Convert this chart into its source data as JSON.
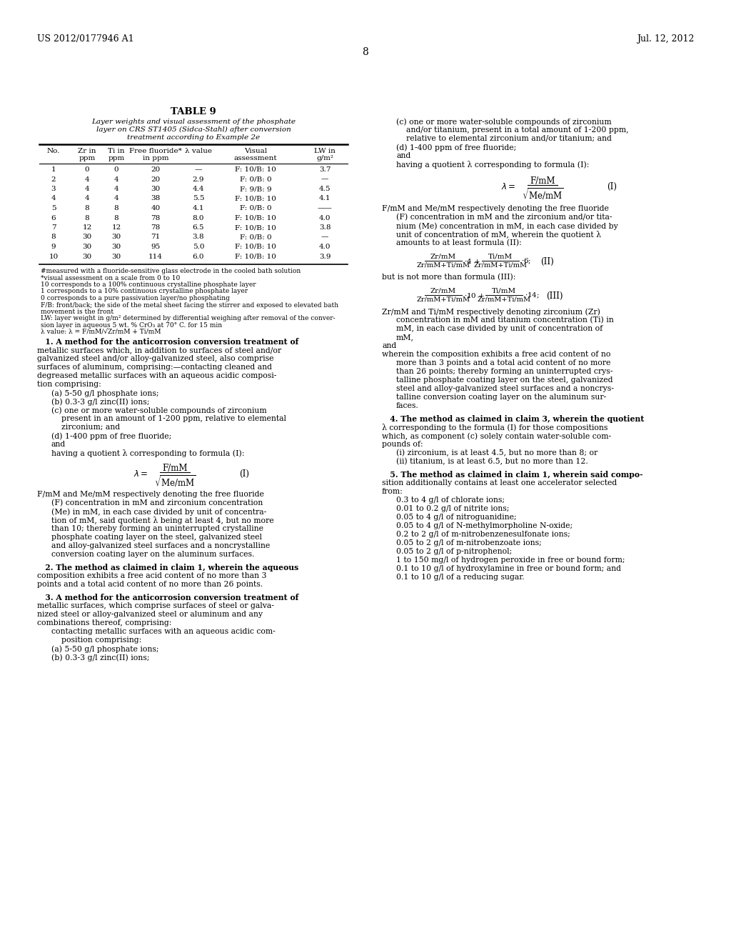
{
  "background_color": "#ffffff",
  "page_header_left": "US 2012/0177946 A1",
  "page_header_right": "Jul. 12, 2012",
  "page_number": "8",
  "table_title": "TABLE 9",
  "table_subtitle_lines": [
    "Layer weights and visual assessment of the phosphate",
    "layer on CRS ST1405 (Sidca-Stahl) after conversion",
    "treatment according to Example 2e"
  ],
  "col_headers": [
    [
      "No.",
      ""
    ],
    [
      "Zr in",
      "ppm"
    ],
    [
      "Ti in",
      "ppm"
    ],
    [
      "Free fluoride*",
      "in ppm"
    ],
    [
      "λ value",
      ""
    ],
    [
      "Visual",
      "assessment"
    ],
    [
      "LW in",
      "g/m²"
    ]
  ],
  "table_rows": [
    [
      "1",
      "0",
      "0",
      "20",
      "—",
      "F: 10/B: 10",
      "3.7"
    ],
    [
      "2",
      "4",
      "4",
      "20",
      "2.9",
      "F: 0/B: 0",
      "—"
    ],
    [
      "3",
      "4",
      "4",
      "30",
      "4.4",
      "F: 9/B: 9",
      "4.5"
    ],
    [
      "4",
      "4",
      "4",
      "38",
      "5.5",
      "F: 10/B: 10",
      "4.1"
    ],
    [
      "5",
      "8",
      "8",
      "40",
      "4.1",
      "F: 0/B: 0",
      "——"
    ],
    [
      "6",
      "8",
      "8",
      "78",
      "8.0",
      "F: 10/B: 10",
      "4.0"
    ],
    [
      "7",
      "12",
      "12",
      "78",
      "6.5",
      "F: 10/B: 10",
      "3.8"
    ],
    [
      "8",
      "30",
      "30",
      "71",
      "3.8",
      "F: 0/B: 0",
      "—"
    ],
    [
      "9",
      "30",
      "30",
      "95",
      "5.0",
      "F: 10/B: 10",
      "4.0"
    ],
    [
      "10",
      "30",
      "30",
      "114",
      "6.0",
      "F: 10/B: 10",
      "3.9"
    ]
  ],
  "footnotes": [
    "#measured with a fluoride-sensitive glass electrode in the cooled bath solution",
    "*visual assessment on a scale from 0 to 10",
    "10 corresponds to a 100% continuous crystalline phosphate layer",
    "1 corresponds to a 10% continuous crystalline phosphate layer",
    "0 corresponds to a pure passivation layer/no phosphating",
    "F/B: front/back; the side of the metal sheet facing the stirrer and exposed to elevated bath",
    "movement is the front",
    "LW: layer weight in g/m² determined by differential weighing after removal of the conver-",
    "sion layer in aqueous 5 wt. % CrO₃ at 70° C. for 15 min",
    "λ value: λ = F/mM/√Zr/mM + Ti/mM"
  ],
  "left_claims": [
    [
      true,
      0,
      "   1. A method for the anticorrosion conversion treatment of"
    ],
    [
      false,
      0,
      "metallic surfaces which, in addition to surfaces of steel and/or"
    ],
    [
      false,
      0,
      "galvanized steel and/or alloy-galvanized steel, also comprise"
    ],
    [
      false,
      0,
      "surfaces of aluminum, comprising:—contacting cleaned and"
    ],
    [
      false,
      0,
      "degreased metallic surfaces with an aqueous acidic composi-"
    ],
    [
      false,
      0,
      "tion comprising:"
    ],
    [
      false,
      1,
      "(a) 5-50 g/l phosphate ions;"
    ],
    [
      false,
      1,
      "(b) 0.3-3 g/l zinc(II) ions;"
    ],
    [
      false,
      1,
      "(c) one or more water-soluble compounds of zirconium"
    ],
    [
      false,
      2,
      "present in an amount of 1-200 ppm, relative to elemental"
    ],
    [
      false,
      2,
      "zirconium; and"
    ],
    [
      false,
      1,
      "(d) 1-400 ppm of free fluoride;"
    ],
    [
      false,
      1,
      "and"
    ],
    [
      false,
      1,
      "having a quotient λ corresponding to formula (I):"
    ],
    [
      false,
      -1,
      "FORMULA_I_LEFT"
    ],
    [
      false,
      0,
      "F/mM and Me/mM respectively denoting the free fluoride"
    ],
    [
      false,
      1,
      "(F) concentration in mM and zirconium concentration"
    ],
    [
      false,
      1,
      "(Me) in mM, in each case divided by unit of concentra-"
    ],
    [
      false,
      1,
      "tion of mM, said quotient λ being at least 4, but no more"
    ],
    [
      false,
      1,
      "than 10; thereby forming an uninterrupted crystalline"
    ],
    [
      false,
      1,
      "phosphate coating layer on the steel, galvanized steel"
    ],
    [
      false,
      1,
      "and alloy-galvanized steel surfaces and a noncrystalline"
    ],
    [
      false,
      1,
      "conversion coating layer on the aluminum surfaces."
    ],
    [
      false,
      -1,
      "BLANK"
    ],
    [
      true,
      0,
      "   2. The method as claimed in claim 1, wherein the aqueous"
    ],
    [
      false,
      0,
      "composition exhibits a free acid content of no more than 3"
    ],
    [
      false,
      0,
      "points and a total acid content of no more than 26 points."
    ],
    [
      false,
      -1,
      "BLANK"
    ],
    [
      true,
      0,
      "   3. A method for the anticorrosion conversion treatment of"
    ],
    [
      false,
      0,
      "metallic surfaces, which comprise surfaces of steel or galva-"
    ],
    [
      false,
      0,
      "nized steel or alloy-galvanized steel or aluminum and any"
    ],
    [
      false,
      0,
      "combinations thereof, comprising:"
    ],
    [
      false,
      1,
      "contacting metallic surfaces with an aqueous acidic com-"
    ],
    [
      false,
      2,
      "position comprising:"
    ],
    [
      false,
      1,
      "(a) 5-50 g/l phosphate ions;"
    ],
    [
      false,
      1,
      "(b) 0.3-3 g/l zinc(II) ions;"
    ]
  ],
  "right_claims": [
    [
      false,
      1,
      "(c) one or more water-soluble compounds of zirconium"
    ],
    [
      false,
      2,
      "and/or titanium, present in a total amount of 1-200 ppm,"
    ],
    [
      false,
      2,
      "relative to elemental zirconium and/or titanium; and"
    ],
    [
      false,
      1,
      "(d) 1-400 ppm of free fluoride;"
    ],
    [
      false,
      1,
      "and"
    ],
    [
      false,
      1,
      "having a quotient λ corresponding to formula (I):"
    ],
    [
      false,
      -1,
      "FORMULA_I_RIGHT"
    ],
    [
      false,
      0,
      "F/mM and Me/mM respectively denoting the free fluoride"
    ],
    [
      false,
      1,
      "(F) concentration in mM and the zirconium and/or tita-"
    ],
    [
      false,
      1,
      "nium (Me) concentration in mM, in each case divided by"
    ],
    [
      false,
      1,
      "unit of concentration of mM, wherein the quotient λ"
    ],
    [
      false,
      1,
      "amounts to at least formula (II):"
    ],
    [
      false,
      -1,
      "FORMULA_II"
    ],
    [
      false,
      0,
      "but is not more than formula (III):"
    ],
    [
      false,
      -1,
      "FORMULA_III"
    ],
    [
      false,
      0,
      "Zr/mM and Ti/mM respectively denoting zirconium (Zr)"
    ],
    [
      false,
      1,
      "concentration in mM and titanium concentration (Ti) in"
    ],
    [
      false,
      1,
      "mM, in each case divided by unit of concentration of"
    ],
    [
      false,
      1,
      "mM,"
    ],
    [
      false,
      0,
      "and"
    ],
    [
      false,
      0,
      "wherein the composition exhibits a free acid content of no"
    ],
    [
      false,
      1,
      "more than 3 points and a total acid content of no more"
    ],
    [
      false,
      1,
      "than 26 points; thereby forming an uninterrupted crys-"
    ],
    [
      false,
      1,
      "talline phosphate coating layer on the steel, galvanized"
    ],
    [
      false,
      1,
      "steel and alloy-galvanized steel surfaces and a noncrys-"
    ],
    [
      false,
      1,
      "talline conversion coating layer on the aluminum sur-"
    ],
    [
      false,
      1,
      "faces."
    ],
    [
      false,
      -1,
      "BLANK"
    ],
    [
      true,
      0,
      "   4. The method as claimed in claim 3, wherein the quotient"
    ],
    [
      false,
      0,
      "λ corresponding to the formula (I) for those compositions"
    ],
    [
      false,
      0,
      "which, as component (c) solely contain water-soluble com-"
    ],
    [
      false,
      0,
      "pounds of:"
    ],
    [
      false,
      1,
      "(i) zirconium, is at least 4.5, but no more than 8; or"
    ],
    [
      false,
      1,
      "(ii) titanium, is at least 6.5, but no more than 12."
    ],
    [
      false,
      -1,
      "BLANK"
    ],
    [
      true,
      0,
      "   5. The method as claimed in claim 1, wherein said compo-"
    ],
    [
      false,
      0,
      "sition additionally contains at least one accelerator selected"
    ],
    [
      false,
      0,
      "from:"
    ],
    [
      false,
      1,
      "0.3 to 4 g/l of chlorate ions;"
    ],
    [
      false,
      1,
      "0.01 to 0.2 g/l of nitrite ions;"
    ],
    [
      false,
      1,
      "0.05 to 4 g/l of nitroguanidine;"
    ],
    [
      false,
      1,
      "0.05 to 4 g/l of N-methylmorpholine N-oxide;"
    ],
    [
      false,
      1,
      "0.2 to 2 g/l of m-nitrobenzenesulfonate ions;"
    ],
    [
      false,
      1,
      "0.05 to 2 g/l of m-nitrobenzoate ions;"
    ],
    [
      false,
      1,
      "0.05 to 2 g/l of p-nitrophenol;"
    ],
    [
      false,
      1,
      "1 to 150 mg/l of hydrogen peroxide in free or bound form;"
    ],
    [
      false,
      1,
      "0.1 to 10 g/l of hydroxylamine in free or bound form; and"
    ],
    [
      false,
      1,
      "0.1 to 10 g/l of a reducing sugar."
    ]
  ]
}
